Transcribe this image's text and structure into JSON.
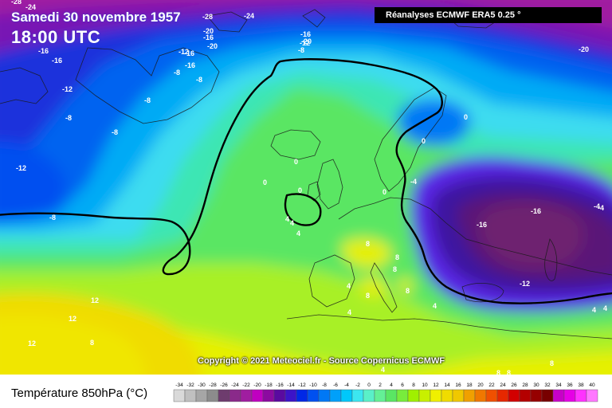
{
  "header": {
    "date_label": "Samedi 30 novembre 1957",
    "time_label": "18:00 UTC",
    "source_label": "Réanalyses ECMWF ERA5 0.25 °"
  },
  "footer": {
    "copyright": "Copyright © 2021 Meteociel.fr - Source Copernicus ECMWF"
  },
  "legend": {
    "title": "Température 850hPa (°C)",
    "ticks": [
      "-34",
      "-32",
      "-30",
      "-28",
      "-26",
      "-24",
      "-22",
      "-20",
      "-18",
      "-16",
      "-14",
      "-12",
      "-10",
      "-8",
      "-6",
      "-4",
      "-2",
      "0",
      "2",
      "4",
      "6",
      "8",
      "10",
      "12",
      "14",
      "16",
      "18",
      "20",
      "22",
      "24",
      "26",
      "28",
      "30",
      "32",
      "34",
      "36",
      "38",
      "40"
    ],
    "colors": [
      "#d9d9d9",
      "#c0c0c0",
      "#a6a6a6",
      "#8c8c8c",
      "#6e3c6e",
      "#8a2a8a",
      "#a01ea0",
      "#c000c0",
      "#8c0aa0",
      "#5a0aa0",
      "#3c14c8",
      "#0028e6",
      "#0050f0",
      "#0078f5",
      "#00a0fa",
      "#00c8fa",
      "#3ce6f0",
      "#5af0c8",
      "#64f096",
      "#5ae664",
      "#78ec3c",
      "#a0f000",
      "#c8f000",
      "#f0f000",
      "#f0dc00",
      "#f0c800",
      "#f0a000",
      "#f07800",
      "#f05000",
      "#e62800",
      "#d20000",
      "#b40000",
      "#960000",
      "#780000",
      "#c800c8",
      "#e600e6",
      "#ff32ff",
      "#ff78ff"
    ]
  },
  "map_labels": [
    {
      "text": "-28"
    },
    {
      "text": "-24"
    },
    {
      "text": "-28"
    },
    {
      "text": "-24"
    },
    {
      "text": "-20"
    },
    {
      "text": "-16"
    },
    {
      "text": "-16"
    },
    {
      "text": "-16"
    },
    {
      "text": "-20"
    },
    {
      "text": "-16"
    },
    {
      "text": "-12"
    },
    {
      "text": "-8"
    },
    {
      "text": "-20"
    },
    {
      "text": "-16"
    },
    {
      "text": "-16"
    },
    {
      "text": "-12"
    },
    {
      "text": "-8"
    },
    {
      "text": "-8"
    },
    {
      "text": "-12"
    },
    {
      "text": "-8"
    },
    {
      "text": "-8"
    },
    {
      "text": "-8"
    },
    {
      "text": "-12"
    },
    {
      "text": "-8"
    },
    {
      "text": "-20"
    },
    {
      "text": "0"
    },
    {
      "text": "0"
    },
    {
      "text": "0"
    },
    {
      "text": "0"
    },
    {
      "text": "0"
    },
    {
      "text": "0"
    },
    {
      "text": "-4"
    },
    {
      "text": "4"
    },
    {
      "text": "4"
    },
    {
      "text": "-4"
    },
    {
      "text": "-16"
    },
    {
      "text": "-16"
    },
    {
      "text": "-12"
    },
    {
      "text": "-4"
    },
    {
      "text": "8"
    },
    {
      "text": "8"
    },
    {
      "text": "8"
    },
    {
      "text": "8"
    },
    {
      "text": "4"
    },
    {
      "text": "8"
    },
    {
      "text": "4"
    },
    {
      "text": "4"
    },
    {
      "text": "12"
    },
    {
      "text": "12"
    },
    {
      "text": "12"
    },
    {
      "text": "8"
    },
    {
      "text": "4"
    },
    {
      "text": "4"
    },
    {
      "text": "4"
    },
    {
      "text": "8"
    },
    {
      "text": "8"
    },
    {
      "text": "8"
    },
    {
      "text": "4"
    }
  ]
}
